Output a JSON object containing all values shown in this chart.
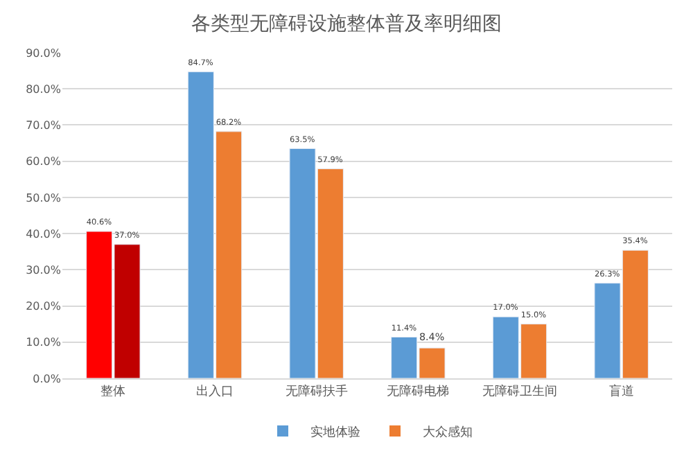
{
  "chart_data": {
    "type": "bar",
    "title": "各类型无障碍设施整体普及率明细图",
    "categories": [
      "整体",
      "出入口",
      "无障碍扶手",
      "无障碍电梯",
      "无障碍卫生间",
      "盲道"
    ],
    "series": [
      {
        "name": "实地体验",
        "color": "#5b9bd5",
        "colors": [
          "#ff0000",
          "#5b9bd5",
          "#5b9bd5",
          "#5b9bd5",
          "#5b9bd5",
          "#5b9bd5"
        ],
        "values": [
          40.6,
          84.7,
          63.5,
          11.4,
          17.0,
          26.3
        ],
        "value_labels": [
          "40.6%",
          "84.7%",
          "63.5%",
          "11.4%",
          "17.0%",
          "26.3%"
        ]
      },
      {
        "name": "大众感知",
        "color": "#ed7d31",
        "colors": [
          "#c00000",
          "#ed7d31",
          "#ed7d31",
          "#ed7d31",
          "#ed7d31",
          "#ed7d31"
        ],
        "values": [
          37.0,
          68.2,
          57.9,
          8.4,
          15.0,
          35.4
        ],
        "value_labels": [
          "37.0%",
          "68.2%",
          "57.9%",
          "8.4%",
          "15.0%",
          "35.4%"
        ]
      }
    ],
    "ylim": [
      0,
      90
    ],
    "yticks": [
      {
        "value": 0,
        "label": "0.0%"
      },
      {
        "value": 10,
        "label": "10.0%"
      },
      {
        "value": 20,
        "label": "20.0%"
      },
      {
        "value": 30,
        "label": "30.0%"
      },
      {
        "value": 40,
        "label": "40.0%"
      },
      {
        "value": 50,
        "label": "50.0%"
      },
      {
        "value": 60,
        "label": "60.0%"
      },
      {
        "value": 70,
        "label": "70.0%"
      },
      {
        "value": 80,
        "label": "80.0%"
      },
      {
        "value": 90,
        "label": "90.0%"
      }
    ],
    "grid": "y",
    "legend": "bottom"
  }
}
